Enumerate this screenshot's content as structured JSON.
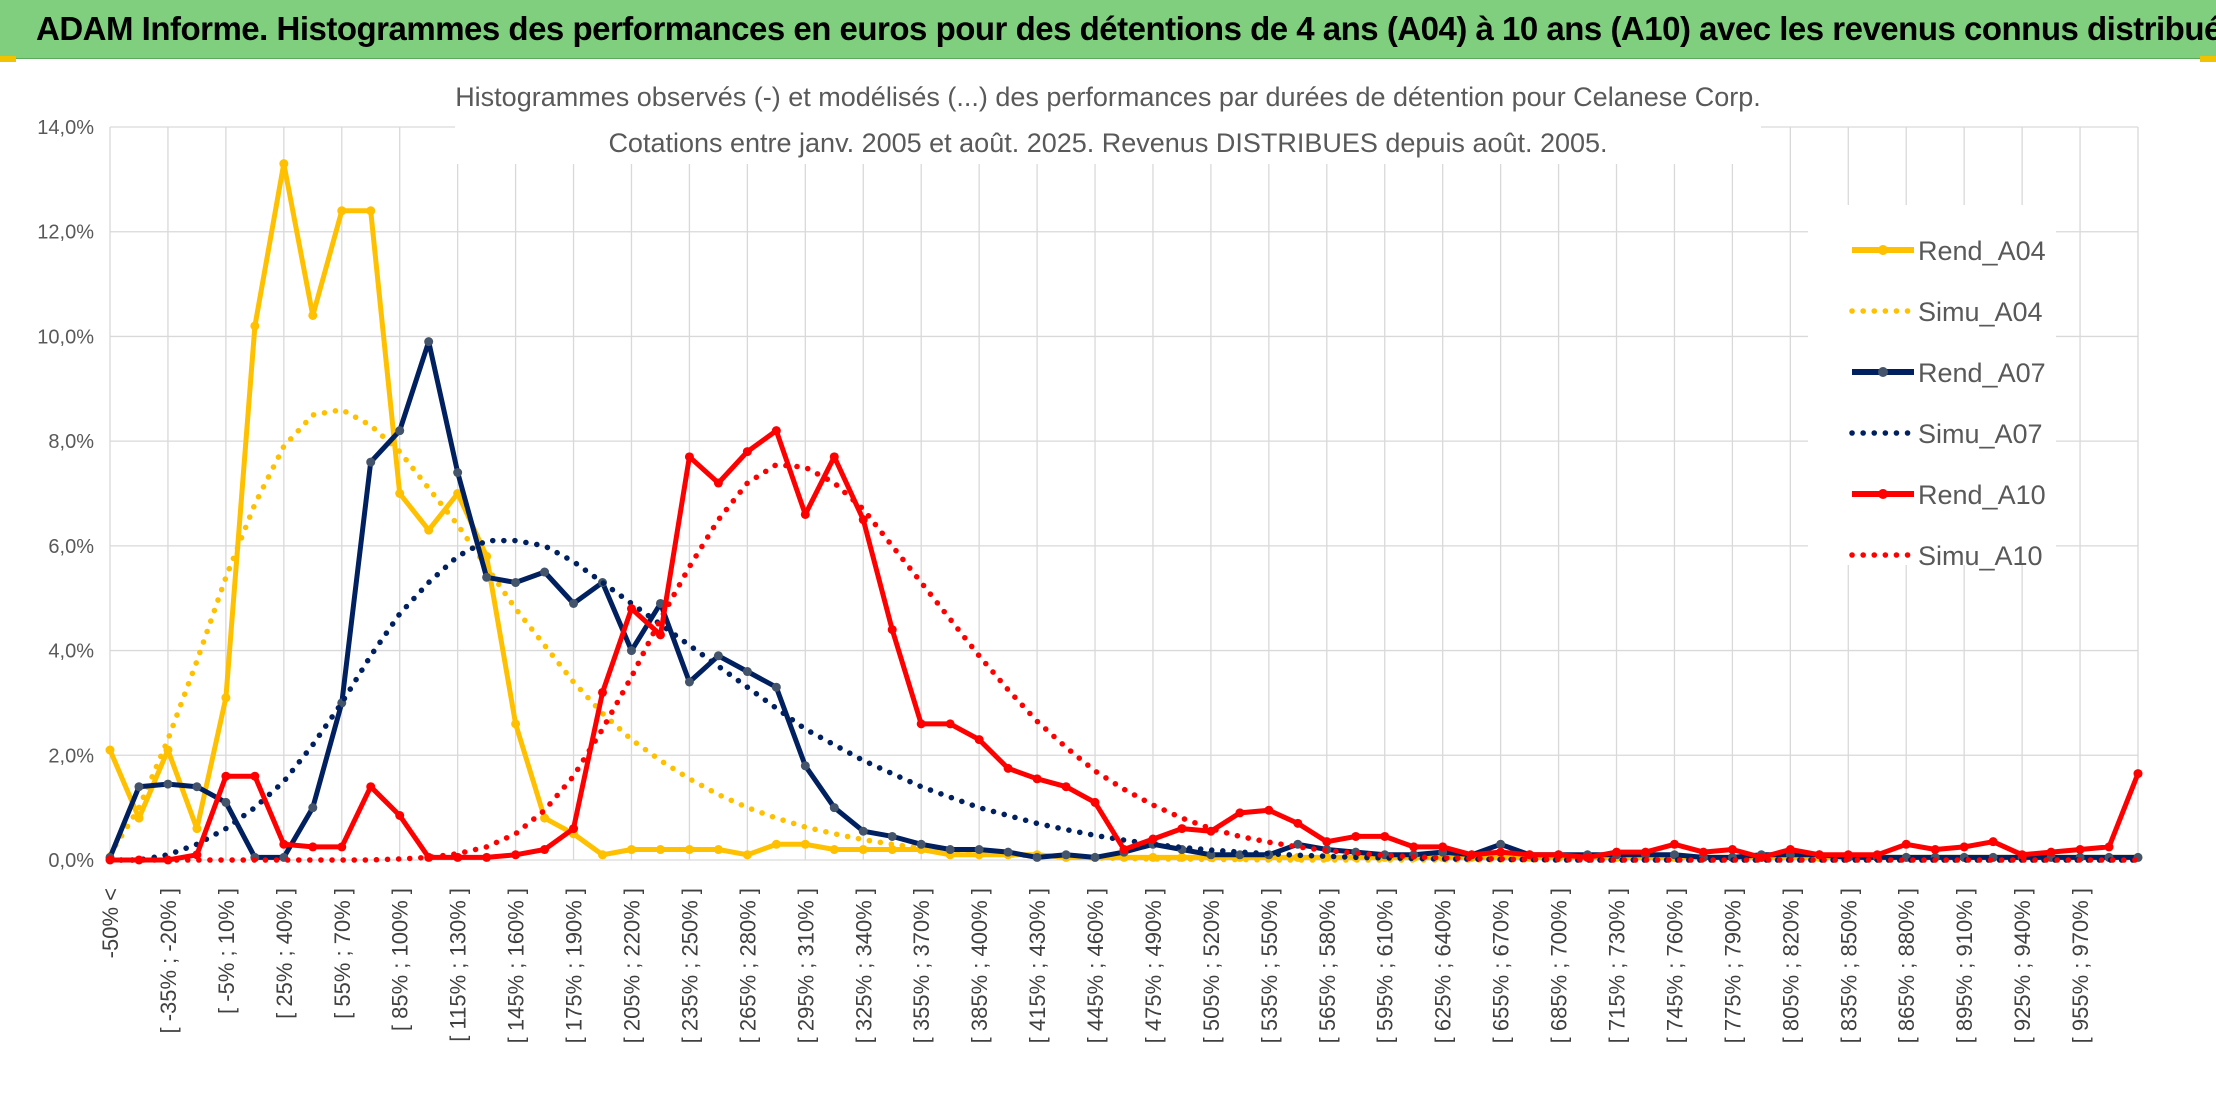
{
  "header": {
    "title": "ADAM Informe. Histogrammes des performances en euros pour des détentions de 4 ans (A04) à 10 ans (A10) avec les revenus connus distribués"
  },
  "chart_data": {
    "type": "line",
    "title": "Histogrammes observés (-) et modélisés (...) des performances par durées de détention pour Celanese Corp.",
    "subtitle": "Cotations entre janv. 2005 et août. 2025. Revenus DISTRIBUES depuis août. 2005.",
    "xlabel": "",
    "ylabel": "",
    "ylim": [
      0,
      14
    ],
    "yticks": [
      "0,0%",
      "2,0%",
      "4,0%",
      "6,0%",
      "8,0%",
      "10,0%",
      "12,0%",
      "14,0%"
    ],
    "grid": true,
    "legend_position": "right",
    "x_tick_labels": [
      "-50% <",
      "[ -35% ; -20% ]",
      "[ -5% ; 10% ]",
      "[ 25% ; 40% ]",
      "[ 55% ; 70% ]",
      "[ 85% ; 100% ]",
      "[ 115% ; 130% ]",
      "[ 145% ; 160% ]",
      "[ 175% ; 190% ]",
      "[ 205% ; 220% ]",
      "[ 235% ; 250% ]",
      "[ 265% ; 280% ]",
      "[ 295% ; 310% ]",
      "[ 325% ; 340% ]",
      "[ 355% ; 370% ]",
      "[ 385% ; 400% ]",
      "[ 415% ; 430% ]",
      "[ 445% ; 460% ]",
      "[ 475% ; 490% ]",
      "[ 505% ; 520% ]",
      "[ 535% ; 550% ]",
      "[ 565% ; 580% ]",
      "[ 595% ; 610% ]",
      "[ 625% ; 640% ]",
      "[ 655% ; 670% ]",
      "[ 685% ; 700% ]",
      "[ 715% ; 730% ]",
      "[ 745% ; 760% ]",
      "[ 775% ; 790% ]",
      "[ 805% ; 820% ]",
      "[ 835% ; 850% ]",
      "[ 865% ; 880% ]",
      "[ 895% ; 910% ]",
      "[ 925% ; 940% ]",
      "[ 955% ; 970% ]"
    ],
    "series": [
      {
        "name": "Rend_A04",
        "color": "#ffc000",
        "style": "solid",
        "values": [
          2.1,
          0.8,
          2.1,
          0.6,
          3.1,
          10.2,
          13.3,
          10.4,
          12.4,
          12.4,
          7.0,
          6.3,
          7.0,
          5.8,
          2.6,
          0.8,
          0.5,
          0.1,
          0.2,
          0.2,
          0.2,
          0.2,
          0.1,
          0.3,
          0.3,
          0.2,
          0.2,
          0.2,
          0.2,
          0.1,
          0.1,
          0.1,
          0.1,
          0.05,
          0.05,
          0.05,
          0.05,
          0.05,
          0.05,
          0.05,
          0.05,
          0.05,
          0.05,
          0.05,
          0.05,
          0.05,
          0.05,
          0.05,
          0.05,
          0.05,
          0.05,
          0.05,
          0.05,
          0.05,
          0.05,
          0.05,
          0.05,
          0.05,
          0.05,
          0.05,
          0.05,
          0.05,
          0.05,
          0.05,
          0.05,
          0.05,
          0.05,
          0.05,
          0.05,
          0.05,
          0.05
        ]
      },
      {
        "name": "Simu_A04",
        "color": "#ffc000",
        "style": "dotted",
        "values": [
          0.1,
          1.0,
          2.3,
          3.8,
          5.4,
          6.8,
          7.9,
          8.5,
          8.6,
          8.3,
          7.8,
          7.1,
          6.4,
          5.6,
          4.8,
          4.1,
          3.4,
          2.8,
          2.3,
          1.9,
          1.55,
          1.25,
          1.0,
          0.8,
          0.63,
          0.5,
          0.39,
          0.3,
          0.23,
          0.18,
          0.14,
          0.1,
          0.08,
          0.06,
          0.04,
          0.03,
          0.02,
          0.02,
          0.01,
          0.01,
          0,
          0,
          0,
          0,
          0,
          0,
          0,
          0,
          0,
          0,
          0,
          0,
          0,
          0,
          0,
          0,
          0,
          0,
          0,
          0,
          0,
          0,
          0,
          0,
          0,
          0,
          0,
          0,
          0,
          0,
          0
        ]
      },
      {
        "name": "Rend_A07",
        "color": "#002060",
        "style": "solid",
        "values": [
          0.05,
          1.4,
          1.45,
          1.4,
          1.1,
          0.05,
          0.05,
          1.0,
          3.0,
          7.6,
          8.2,
          9.9,
          7.4,
          5.4,
          5.3,
          5.5,
          4.9,
          5.3,
          4.0,
          4.9,
          3.4,
          3.9,
          3.6,
          3.3,
          1.8,
          1.0,
          0.55,
          0.45,
          0.3,
          0.2,
          0.2,
          0.15,
          0.05,
          0.1,
          0.05,
          0.15,
          0.3,
          0.2,
          0.1,
          0.1,
          0.1,
          0.3,
          0.2,
          0.15,
          0.1,
          0.1,
          0.15,
          0.1,
          0.3,
          0.1,
          0.1,
          0.1,
          0.1,
          0.1,
          0.1,
          0.05,
          0.05,
          0.1,
          0.1,
          0.1,
          0.05,
          0.05,
          0.05,
          0.05,
          0.05,
          0.05,
          0.05,
          0.05,
          0.05,
          0.05,
          0.05
        ]
      },
      {
        "name": "Simu_A07",
        "color": "#002060",
        "style": "dotted",
        "values": [
          0,
          0,
          0.1,
          0.3,
          0.6,
          1.0,
          1.5,
          2.2,
          3.0,
          3.9,
          4.7,
          5.3,
          5.8,
          6.1,
          6.1,
          6.0,
          5.7,
          5.3,
          4.9,
          4.5,
          4.1,
          3.7,
          3.3,
          2.9,
          2.5,
          2.2,
          1.9,
          1.65,
          1.4,
          1.2,
          1.0,
          0.85,
          0.7,
          0.58,
          0.47,
          0.38,
          0.3,
          0.24,
          0.19,
          0.15,
          0.12,
          0.09,
          0.07,
          0.05,
          0.04,
          0.03,
          0.02,
          0.02,
          0.01,
          0.01,
          0,
          0,
          0,
          0,
          0,
          0,
          0,
          0,
          0,
          0,
          0,
          0,
          0,
          0,
          0,
          0,
          0,
          0,
          0,
          0,
          0
        ]
      },
      {
        "name": "Rend_A10",
        "color": "#ff0000",
        "style": "solid",
        "values": [
          0,
          0,
          0,
          0.1,
          1.6,
          1.6,
          0.3,
          0.25,
          0.25,
          1.4,
          0.85,
          0.05,
          0.05,
          0.05,
          0.1,
          0.2,
          0.6,
          3.2,
          4.8,
          4.3,
          7.7,
          7.2,
          7.8,
          8.2,
          6.6,
          7.7,
          6.5,
          4.4,
          2.6,
          2.6,
          2.3,
          1.75,
          1.55,
          1.4,
          1.1,
          0.2,
          0.4,
          0.6,
          0.55,
          0.9,
          0.95,
          0.7,
          0.35,
          0.45,
          0.45,
          0.25,
          0.25,
          0.1,
          0.15,
          0.1,
          0.1,
          0.05,
          0.15,
          0.15,
          0.3,
          0.15,
          0.2,
          0.05,
          0.2,
          0.1,
          0.1,
          0.1,
          0.3,
          0.2,
          0.25,
          0.35,
          0.1,
          0.15,
          0.2,
          0.25,
          1.65
        ]
      },
      {
        "name": "Simu_A10",
        "color": "#ff0000",
        "style": "dotted",
        "values": [
          0,
          0,
          0,
          0,
          0,
          0,
          0,
          0,
          0,
          0,
          0.02,
          0.05,
          0.12,
          0.25,
          0.5,
          0.95,
          1.6,
          2.5,
          3.5,
          4.6,
          5.6,
          6.5,
          7.2,
          7.55,
          7.5,
          7.2,
          6.7,
          6.0,
          5.3,
          4.6,
          3.9,
          3.25,
          2.65,
          2.15,
          1.7,
          1.35,
          1.05,
          0.8,
          0.6,
          0.45,
          0.34,
          0.25,
          0.18,
          0.13,
          0.09,
          0.06,
          0.04,
          0.03,
          0.02,
          0.01,
          0.01,
          0,
          0,
          0,
          0,
          0,
          0,
          0,
          0,
          0,
          0,
          0,
          0,
          0,
          0,
          0,
          0,
          0,
          0,
          0,
          0
        ]
      }
    ]
  }
}
